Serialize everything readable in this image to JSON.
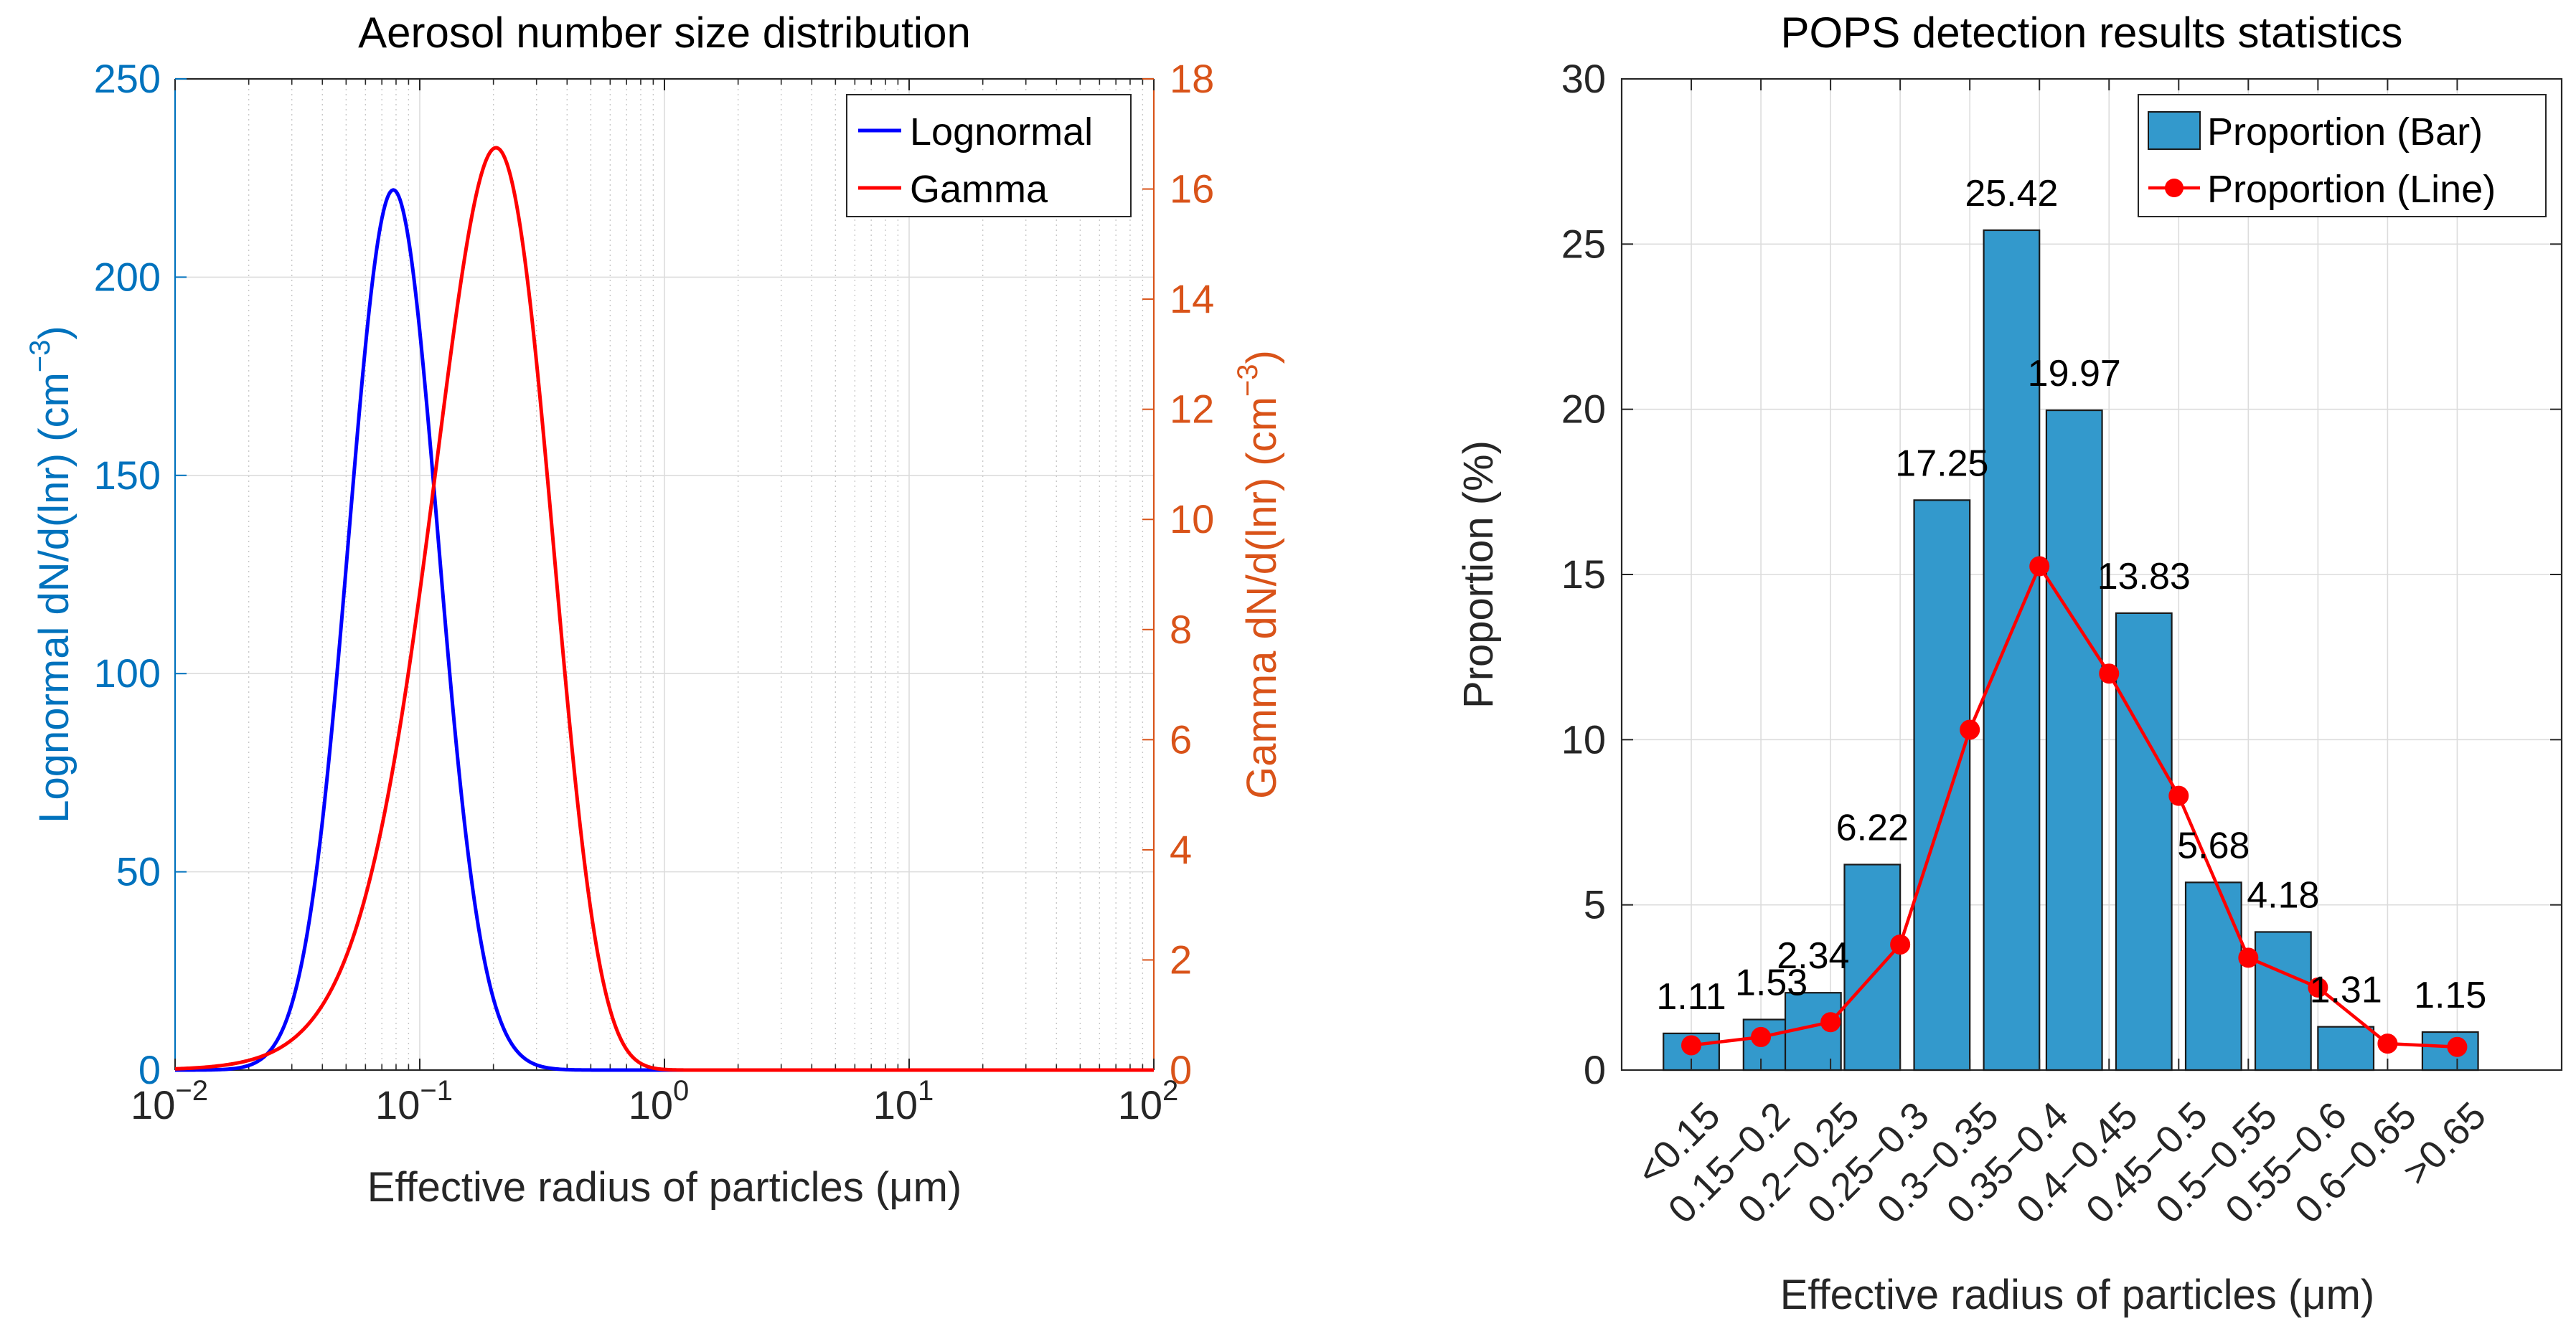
{
  "chart_data": [
    {
      "type": "line",
      "title": "Aerosol number size distribution",
      "xlabel": "Effective radius of particles (μm)",
      "xscale": "log",
      "xlim": [
        0.01,
        100
      ],
      "x_ticks": [
        0.01,
        0.1,
        1,
        10,
        100
      ],
      "x_tick_labels": [
        {
          "base": "10",
          "exp": "−2"
        },
        {
          "base": "10",
          "exp": "−1"
        },
        {
          "base": "10",
          "exp": "0"
        },
        {
          "base": "10",
          "exp": "1"
        },
        {
          "base": "10",
          "exp": "2"
        }
      ],
      "grid": true,
      "legend_position": "top-right",
      "left_axis": {
        "label": "Lognormal dN/d(lnr) (cm",
        "label_exp": "−3",
        "label_close": ")",
        "ylim": [
          0,
          250
        ],
        "ticks": [
          0,
          50,
          100,
          150,
          200,
          250
        ],
        "color": "#0072BD"
      },
      "right_axis": {
        "label": "Gamma dN/d(lnr) (cm",
        "label_exp": "−3",
        "label_close": ")",
        "ylim": [
          0,
          18
        ],
        "ticks": [
          0,
          2,
          4,
          6,
          8,
          10,
          12,
          14,
          16,
          18
        ],
        "color": "#D95319"
      },
      "series": [
        {
          "name": "Lognormal",
          "color": "#0000FF",
          "axis": "left",
          "model": "lognormal",
          "peak_x": 0.078,
          "peak_y": 222,
          "sigma_ln": 0.42
        },
        {
          "name": "Gamma",
          "color": "#FF0000",
          "axis": "right",
          "model": "gamma",
          "peak_x": 0.205,
          "peak_y": 16.75,
          "shape_k": 3.2
        }
      ]
    },
    {
      "type": "bar",
      "title": "POPS detection results statistics",
      "xlabel": "Effective radius of particles (μm)",
      "ylabel": "Proportion (%)",
      "ylim": [
        0,
        30
      ],
      "y_ticks": [
        0,
        5,
        10,
        15,
        20,
        25,
        30
      ],
      "grid": true,
      "legend_position": "top-right",
      "categories": [
        "<0.15",
        "0.15−0.2",
        "0.2−0.25",
        "0.25−0.3",
        "0.3−0.35",
        "0.35−0.4",
        "0.4−0.45",
        "0.45−0.5",
        "0.5−0.55",
        "0.55−0.6",
        "0.6−0.65",
        ">0.65"
      ],
      "x_positions": [
        1,
        2,
        3,
        4,
        5,
        6,
        7,
        8,
        9,
        10,
        11,
        12
      ],
      "xlim": [
        0,
        13.5
      ],
      "bar_x": [
        1,
        2.15,
        2.75,
        3.6,
        4.6,
        5.6,
        6.5,
        7.5,
        8.5,
        9.5,
        10.4,
        11.9
      ],
      "values": [
        1.11,
        1.53,
        2.34,
        6.22,
        17.25,
        25.42,
        19.97,
        13.83,
        5.68,
        4.18,
        1.31,
        1.15
      ],
      "line_values": [
        0.75,
        1.0,
        1.45,
        3.8,
        10.3,
        15.25,
        12.0,
        8.3,
        3.4,
        2.5,
        0.8,
        0.7
      ],
      "data_labels": [
        "1.11",
        "1.53",
        "2.34",
        "6.22",
        "17.25",
        "25.42",
        "19.97",
        "13.83",
        "5.68",
        "4.18",
        "1.31",
        "1.15"
      ],
      "series": [
        {
          "name": "Proportion (Bar)",
          "kind": "bar",
          "color": "#3399CC",
          "edge": "#1A1A1A"
        },
        {
          "name": "Proportion (Line)",
          "kind": "line",
          "color": "#FF0000"
        }
      ]
    }
  ]
}
